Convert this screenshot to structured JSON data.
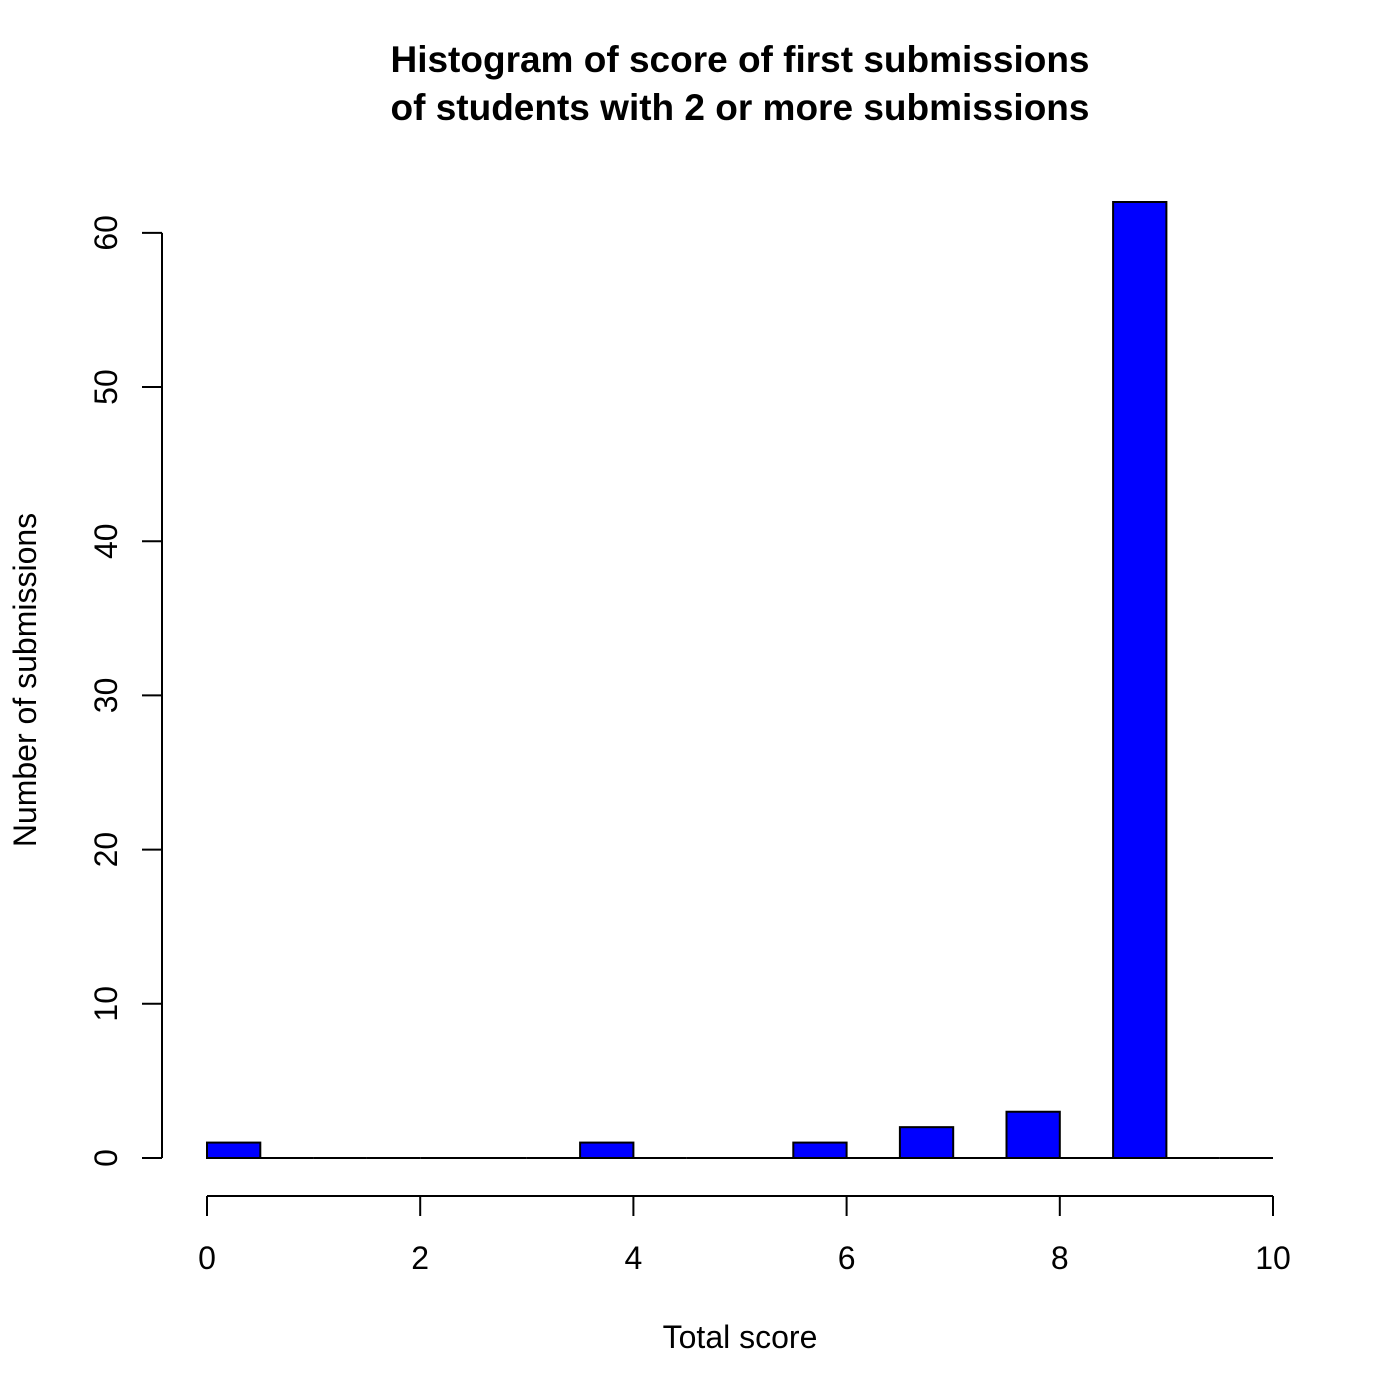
{
  "chart_data": {
    "type": "bar",
    "title_lines": [
      "Histogram of score of first submissions",
      "of students with 2 or more submissions"
    ],
    "xlabel": "Total score",
    "ylabel": "Number of submissions",
    "bar_color": "#0000ff",
    "bins": [
      {
        "x0": 0.0,
        "x1": 0.5,
        "count": 1
      },
      {
        "x0": 0.5,
        "x1": 1.0,
        "count": 0
      },
      {
        "x0": 1.0,
        "x1": 1.5,
        "count": 0
      },
      {
        "x0": 1.5,
        "x1": 2.0,
        "count": 0
      },
      {
        "x0": 2.0,
        "x1": 2.5,
        "count": 0
      },
      {
        "x0": 2.5,
        "x1": 3.0,
        "count": 0
      },
      {
        "x0": 3.0,
        "x1": 3.5,
        "count": 0
      },
      {
        "x0": 3.5,
        "x1": 4.0,
        "count": 1
      },
      {
        "x0": 4.0,
        "x1": 4.5,
        "count": 0
      },
      {
        "x0": 4.5,
        "x1": 5.0,
        "count": 0
      },
      {
        "x0": 5.0,
        "x1": 5.5,
        "count": 0
      },
      {
        "x0": 5.5,
        "x1": 6.0,
        "count": 1
      },
      {
        "x0": 6.0,
        "x1": 6.5,
        "count": 0
      },
      {
        "x0": 6.5,
        "x1": 7.0,
        "count": 2
      },
      {
        "x0": 7.0,
        "x1": 7.5,
        "count": 0
      },
      {
        "x0": 7.5,
        "x1": 8.0,
        "count": 3
      },
      {
        "x0": 8.0,
        "x1": 8.5,
        "count": 0
      },
      {
        "x0": 8.5,
        "x1": 9.0,
        "count": 62
      },
      {
        "x0": 9.0,
        "x1": 9.5,
        "count": 0
      },
      {
        "x0": 9.5,
        "x1": 10.0,
        "count": 0
      }
    ],
    "x_ticks": [
      0,
      2,
      4,
      6,
      8,
      10
    ],
    "y_ticks": [
      0,
      10,
      20,
      30,
      40,
      50,
      60
    ],
    "xlim": [
      0,
      10
    ],
    "ylim": [
      0,
      62
    ]
  }
}
